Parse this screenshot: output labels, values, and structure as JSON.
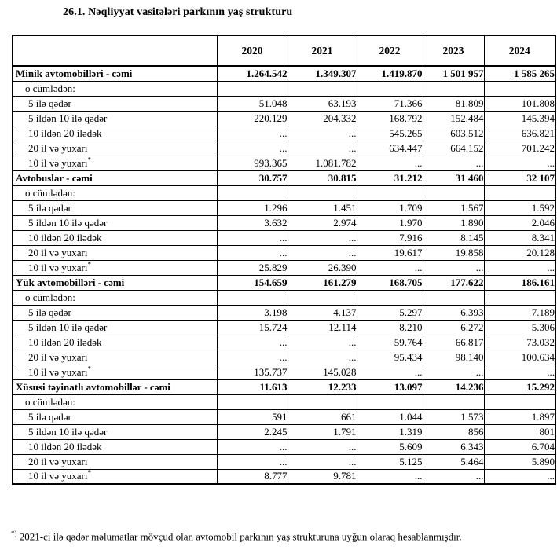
{
  "title": "26.1. Nəqliyyat vasitələri parkının yaş strukturu",
  "chart_data": {
    "type": "table",
    "columns": [
      "",
      "2020",
      "2021",
      "2022",
      "2023",
      "2024"
    ],
    "rows": [
      {
        "label": "Minik avtomobilləri - cəmi",
        "type": "section",
        "values": [
          "1.264.542",
          "1.349.307",
          "1.419.870",
          "1 501 957",
          "1 585 265"
        ]
      },
      {
        "label": "o cümlədən:",
        "type": "subheader",
        "values": [
          "",
          "",
          "",
          "",
          ""
        ]
      },
      {
        "label": "5 ilə qədər",
        "type": "item",
        "values": [
          "51.048",
          "63.193",
          "71.366",
          "81.809",
          "101.808"
        ]
      },
      {
        "label": "5 ildən 10 ilə qədər",
        "type": "item",
        "values": [
          "220.129",
          "204.332",
          "168.792",
          "152.484",
          "145.394"
        ]
      },
      {
        "label": "10 ildən 20 ilədək",
        "type": "item",
        "values": [
          "...",
          "...",
          "545.265",
          "603.512",
          "636.821"
        ]
      },
      {
        "label": "20 il və yuxarı",
        "type": "item",
        "values": [
          "...",
          "...",
          "634.447",
          "664.152",
          "701.242"
        ]
      },
      {
        "label": "10 il və yuxarı",
        "sup": "*",
        "type": "item",
        "values": [
          "993.365",
          "1.081.782",
          "...",
          "...",
          "..."
        ]
      },
      {
        "label": "Avtobuslar - cəmi",
        "type": "section",
        "values": [
          "30.757",
          "30.815",
          "31.212",
          "31 460",
          "32 107"
        ]
      },
      {
        "label": "o cümlədən:",
        "type": "subheader",
        "values": [
          "",
          "",
          "",
          "",
          ""
        ]
      },
      {
        "label": "5 ilə qədər",
        "type": "item",
        "values": [
          "1.296",
          "1.451",
          "1.709",
          "1.567",
          "1.592"
        ]
      },
      {
        "label": "5 ildən 10 ilə qədər",
        "type": "item",
        "values": [
          "3.632",
          "2.974",
          "1.970",
          "1.890",
          "2.046"
        ]
      },
      {
        "label": "10 ildən 20 ilədək",
        "type": "item",
        "values": [
          "...",
          "...",
          "7.916",
          "8.145",
          "8.341"
        ]
      },
      {
        "label": "20 il və yuxarı",
        "type": "item",
        "values": [
          "...",
          "...",
          "19.617",
          "19.858",
          "20.128"
        ]
      },
      {
        "label": "10 il və yuxarı",
        "sup": "*",
        "type": "item",
        "values": [
          "25.829",
          "26.390",
          "...",
          "...",
          "..."
        ]
      },
      {
        "label": "Yük avtomobilləri - cəmi",
        "type": "section",
        "values": [
          "154.659",
          "161.279",
          "168.705",
          "177.622",
          "186.161"
        ]
      },
      {
        "label": "o cümlədən:",
        "type": "subheader",
        "values": [
          "",
          "",
          "",
          "",
          ""
        ]
      },
      {
        "label": "5 ilə qədər",
        "type": "item",
        "values": [
          "3.198",
          "4.137",
          "5.297",
          "6.393",
          "7.189"
        ]
      },
      {
        "label": "5 ildən 10 ilə qədər",
        "type": "item",
        "values": [
          "15.724",
          "12.114",
          "8.210",
          "6.272",
          "5.306"
        ]
      },
      {
        "label": "10 ildən 20 ilədək",
        "type": "item",
        "values": [
          "...",
          "...",
          "59.764",
          "66.817",
          "73.032"
        ]
      },
      {
        "label": "20 il və yuxarı",
        "type": "item",
        "values": [
          "...",
          "...",
          "95.434",
          "98.140",
          "100.634"
        ]
      },
      {
        "label": "10 il və yuxarı",
        "sup": "*",
        "type": "item",
        "values": [
          "135.737",
          "145.028",
          "...",
          "...",
          "..."
        ]
      },
      {
        "label": "Xüsusi təyinatlı avtomobillər - cəmi",
        "type": "section",
        "values": [
          "11.613",
          "12.233",
          "13.097",
          "14.236",
          "15.292"
        ]
      },
      {
        "label": "o cümlədən:",
        "type": "subheader",
        "values": [
          "",
          "",
          "",
          "",
          ""
        ]
      },
      {
        "label": "5 ilə qədər",
        "type": "item",
        "values": [
          "591",
          "661",
          "1.044",
          "1.573",
          "1.897"
        ]
      },
      {
        "label": "5 ildən 10 ilə qədər",
        "type": "item",
        "values": [
          "2.245",
          "1.791",
          "1.319",
          "856",
          "801"
        ]
      },
      {
        "label": "10 ildən 20 ilədək",
        "type": "item",
        "values": [
          "...",
          "...",
          "5.609",
          "6.343",
          "6.704"
        ]
      },
      {
        "label": "20 il və yuxarı",
        "type": "item",
        "values": [
          "...",
          "...",
          "5.125",
          "5.464",
          "5.890"
        ]
      },
      {
        "label": "10 il və yuxarı",
        "sup": "*",
        "type": "item",
        "values": [
          "8.777",
          "9.781",
          "...",
          "...",
          "..."
        ]
      }
    ]
  },
  "footnote": {
    "marker": "*)",
    "text": "2021-ci ilə qədər məlumatlar mövçud olan avtomobil parkının yaş strukturuna uyğun olaraq hesablanmışdır."
  }
}
